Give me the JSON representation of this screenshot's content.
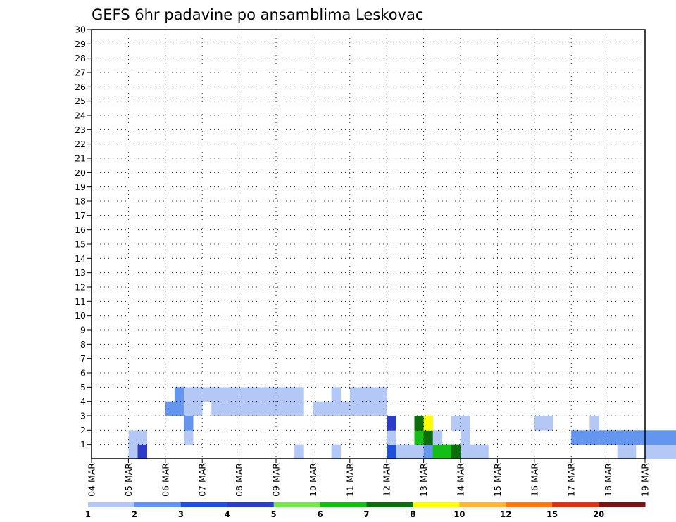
{
  "chart_data": {
    "type": "heatmap",
    "title": "GEFS 6hr padavine po ansamblima Leskovac",
    "xlabel": "",
    "ylabel": "",
    "x_tick_labels": [
      "04 MAR",
      "05 MAR",
      "06 MAR",
      "07 MAR",
      "08 MAR",
      "09 MAR",
      "10 MAR",
      "11 MAR",
      "12 MAR",
      "13 MAR",
      "14 MAR",
      "15 MAR",
      "16 MAR",
      "17 MAR",
      "18 MAR",
      "19 MAR"
    ],
    "y_tick_labels": [
      "1",
      "2",
      "3",
      "4",
      "5",
      "6",
      "7",
      "8",
      "9",
      "10",
      "11",
      "12",
      "13",
      "14",
      "15",
      "16",
      "17",
      "18",
      "19",
      "20",
      "21",
      "22",
      "23",
      "24",
      "25",
      "26",
      "27",
      "28",
      "29",
      "30"
    ],
    "x_range_days": [
      0,
      15
    ],
    "y_range": [
      0,
      30
    ],
    "grid": "dotted",
    "colorbar": {
      "labels": [
        "1",
        "2",
        "3",
        "4",
        "5",
        "6",
        "7",
        "8",
        "10",
        "12",
        "15",
        "20"
      ],
      "colors": [
        "#b4c8f5",
        "#6496f0",
        "#1e50dc",
        "#2d3cc8",
        "#78e650",
        "#14be14",
        "#0a6e0a",
        "#ffff00",
        "#ffb43c",
        "#ff7814",
        "#dc3214",
        "#781414"
      ]
    },
    "cells": [
      [
        1,
        0,
        1
      ],
      [
        1.25,
        0,
        4
      ],
      [
        5.5,
        0,
        1
      ],
      [
        6.5,
        0,
        1
      ],
      [
        8,
        0,
        3
      ],
      [
        8.25,
        0,
        1
      ],
      [
        8.5,
        0,
        1
      ],
      [
        8.75,
        0,
        1
      ],
      [
        9,
        0,
        2
      ],
      [
        9.25,
        0,
        6
      ],
      [
        9.5,
        0,
        6
      ],
      [
        9.75,
        0,
        7
      ],
      [
        10,
        0,
        1
      ],
      [
        10.25,
        0,
        1
      ],
      [
        10.5,
        0,
        1
      ],
      [
        14.25,
        0,
        1
      ],
      [
        14.5,
        0,
        1
      ],
      [
        15,
        0,
        1
      ],
      [
        15.25,
        0,
        1
      ],
      [
        15.5,
        0,
        1
      ],
      [
        15.75,
        0,
        1
      ],
      [
        1,
        1,
        1
      ],
      [
        1.25,
        1,
        1
      ],
      [
        2.5,
        1,
        1
      ],
      [
        8,
        1,
        1
      ],
      [
        8.75,
        1,
        6
      ],
      [
        9,
        1,
        7
      ],
      [
        9.25,
        1,
        1
      ],
      [
        10,
        1,
        1
      ],
      [
        13,
        1,
        2
      ],
      [
        13.25,
        1,
        2
      ],
      [
        13.5,
        1,
        2
      ],
      [
        13.75,
        1,
        2
      ],
      [
        14,
        1,
        2
      ],
      [
        14.25,
        1,
        2
      ],
      [
        14.5,
        1,
        2
      ],
      [
        14.75,
        1,
        2
      ],
      [
        15,
        1,
        2
      ],
      [
        15.25,
        1,
        2
      ],
      [
        15.5,
        1,
        2
      ],
      [
        15.75,
        1,
        2
      ],
      [
        2.5,
        2,
        2
      ],
      [
        8,
        2,
        4
      ],
      [
        8.75,
        2,
        7
      ],
      [
        9,
        2,
        8
      ],
      [
        9.75,
        2,
        1
      ],
      [
        10,
        2,
        1
      ],
      [
        12,
        2,
        1
      ],
      [
        12.25,
        2,
        1
      ],
      [
        13.5,
        2,
        1
      ],
      [
        2,
        3,
        2
      ],
      [
        2.25,
        3,
        2
      ],
      [
        2.5,
        3,
        1
      ],
      [
        2.75,
        3,
        1
      ],
      [
        3.25,
        3,
        1
      ],
      [
        3.5,
        3,
        1
      ],
      [
        3.75,
        3,
        1
      ],
      [
        4,
        3,
        1
      ],
      [
        4.25,
        3,
        1
      ],
      [
        4.5,
        3,
        1
      ],
      [
        4.75,
        3,
        1
      ],
      [
        5,
        3,
        1
      ],
      [
        5.25,
        3,
        1
      ],
      [
        5.5,
        3,
        1
      ],
      [
        6,
        3,
        1
      ],
      [
        6.25,
        3,
        1
      ],
      [
        6.5,
        3,
        1
      ],
      [
        6.75,
        3,
        1
      ],
      [
        7,
        3,
        1
      ],
      [
        7.25,
        3,
        1
      ],
      [
        7.5,
        3,
        1
      ],
      [
        7.75,
        3,
        1
      ],
      [
        2.25,
        4,
        2
      ],
      [
        2.5,
        4,
        1
      ],
      [
        2.75,
        4,
        1
      ],
      [
        3,
        4,
        1
      ],
      [
        3.25,
        4,
        1
      ],
      [
        3.5,
        4,
        1
      ],
      [
        3.75,
        4,
        1
      ],
      [
        4,
        4,
        1
      ],
      [
        4.25,
        4,
        1
      ],
      [
        4.5,
        4,
        1
      ],
      [
        4.75,
        4,
        1
      ],
      [
        5,
        4,
        1
      ],
      [
        5.25,
        4,
        1
      ],
      [
        5.5,
        4,
        1
      ],
      [
        6.5,
        4,
        1
      ],
      [
        7,
        4,
        1
      ],
      [
        7.25,
        4,
        1
      ],
      [
        7.5,
        4,
        1
      ],
      [
        7.75,
        4,
        1
      ]
    ]
  }
}
